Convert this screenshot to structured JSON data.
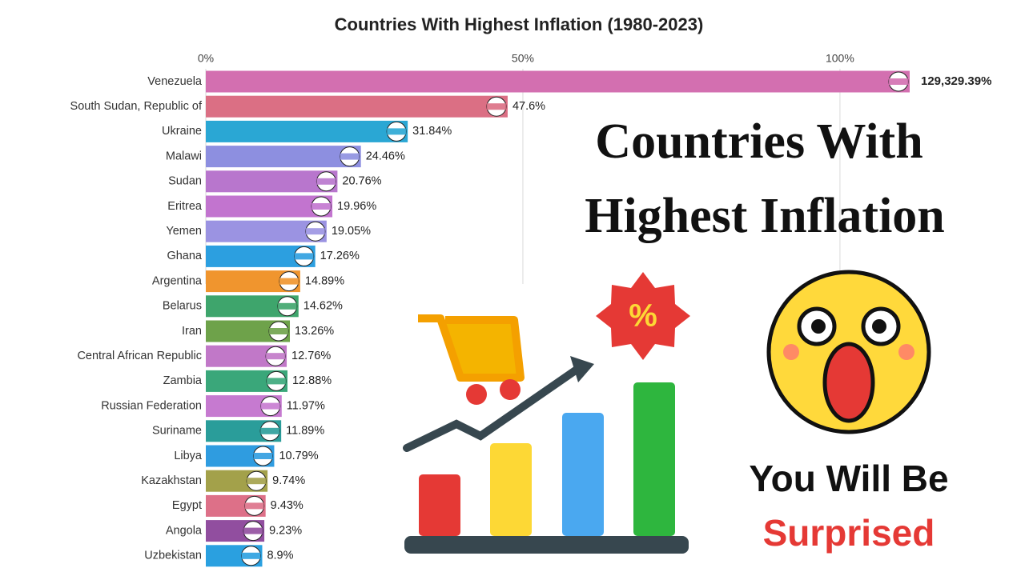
{
  "chart_data": {
    "type": "bar",
    "orientation": "horizontal",
    "title": "Countries With Highest Inflation (1980-2023)",
    "categories": [
      "Venezuela",
      "South Sudan, Republic of",
      "Ukraine",
      "Malawi",
      "Sudan",
      "Eritrea",
      "Yemen",
      "Ghana",
      "Argentina",
      "Belarus",
      "Iran",
      "Central African Republic",
      "Zambia",
      "Russian Federation",
      "Suriname",
      "Libya",
      "Kazakhstan",
      "Egypt",
      "Angola",
      "Uzbekistan"
    ],
    "values": [
      129329.39,
      47.6,
      31.84,
      24.46,
      20.76,
      19.96,
      19.05,
      17.26,
      14.89,
      14.62,
      13.26,
      12.76,
      12.88,
      11.97,
      11.89,
      10.79,
      9.74,
      9.43,
      9.23,
      8.9
    ],
    "value_labels": [
      "129,329.39%",
      "47.6%",
      "31.84%",
      "24.46%",
      "20.76%",
      "19.96%",
      "19.05%",
      "17.26%",
      "14.89%",
      "14.62%",
      "13.26%",
      "12.76%",
      "12.88%",
      "11.97%",
      "11.89%",
      "10.79%",
      "9.74%",
      "9.43%",
      "9.23%",
      "8.9%"
    ],
    "colors": [
      "#d36fb0",
      "#db6f84",
      "#2aa7d4",
      "#8d8fe0",
      "#b876cd",
      "#c274cf",
      "#9b93e2",
      "#2c9fe0",
      "#f0952e",
      "#3ea56c",
      "#6ea24a",
      "#c178c8",
      "#3aa77a",
      "#c67ad0",
      "#2a9d9a",
      "#2f9ce0",
      "#a3a14a",
      "#dd7088",
      "#914e9f",
      "#2aa0e0"
    ],
    "xlim": [
      0,
      111
    ],
    "xticks": [
      {
        "value": 0,
        "label": "0%"
      },
      {
        "value": 50,
        "label": "50%"
      },
      {
        "value": 100,
        "label": "100%"
      }
    ],
    "grid": true,
    "annotations": [
      "Countries With",
      "Highest Inflation",
      "You Will Be",
      "Surprised"
    ]
  }
}
